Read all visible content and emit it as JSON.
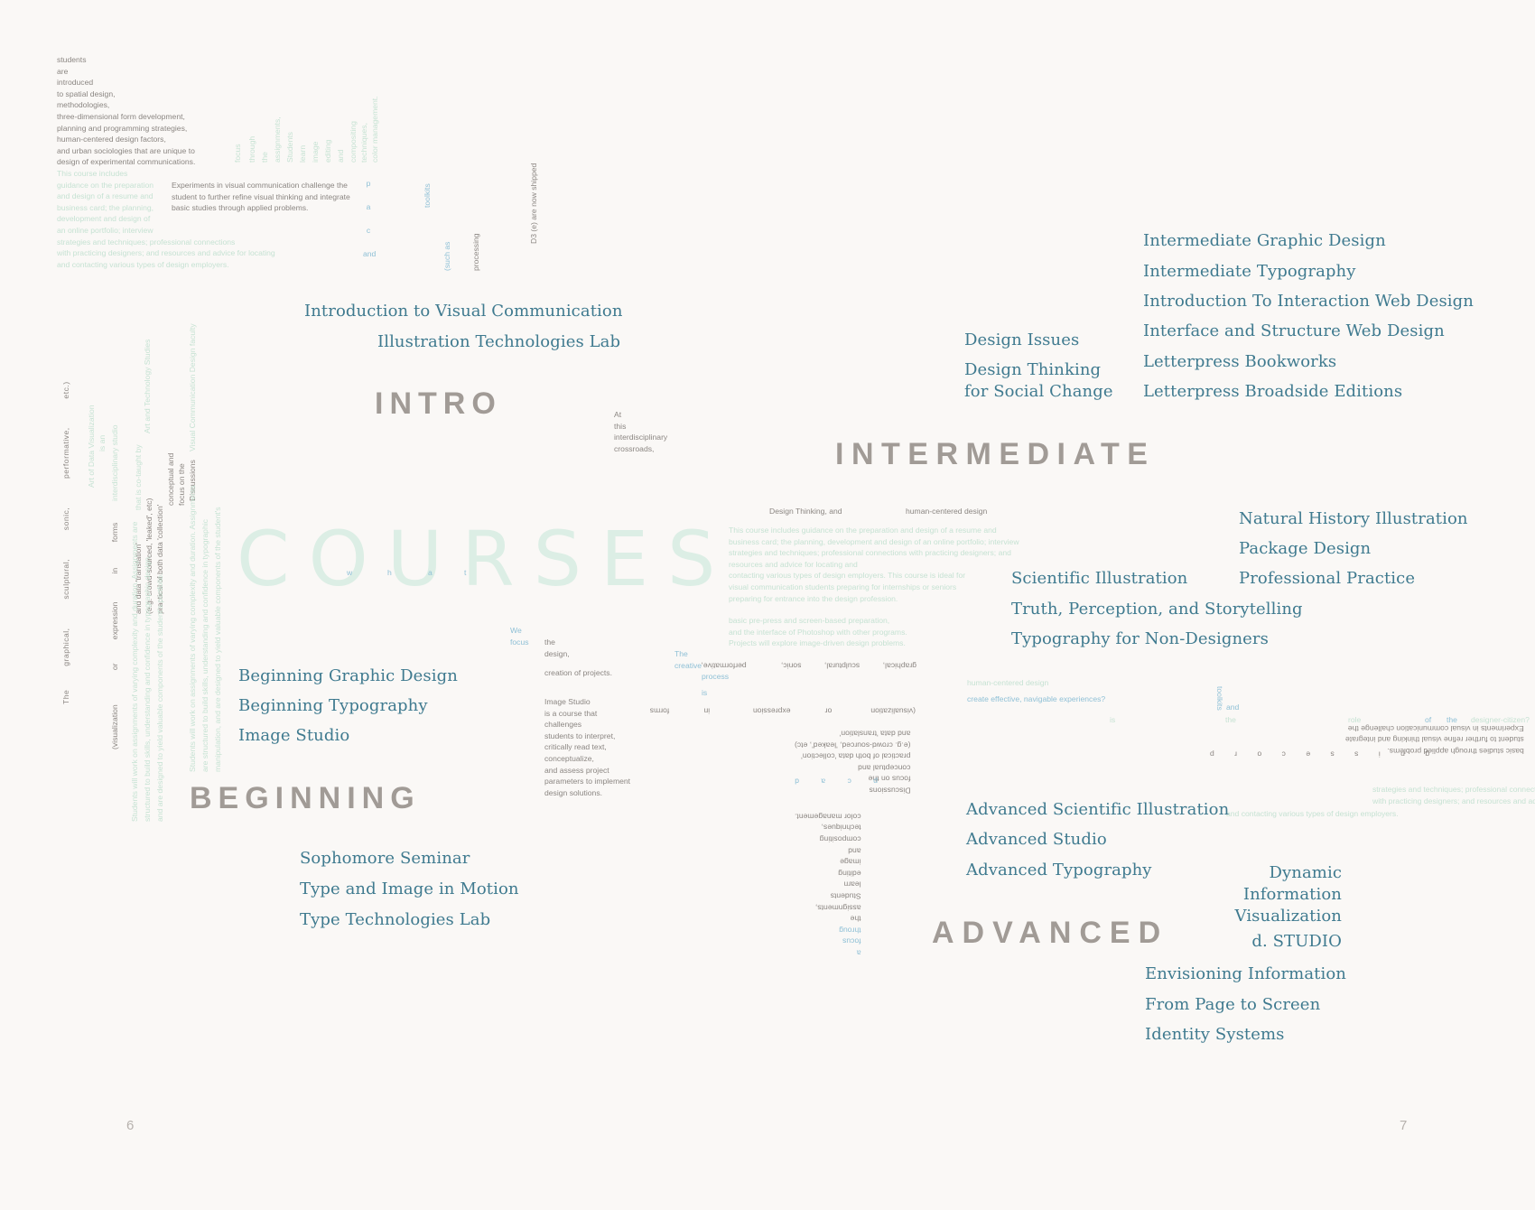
{
  "hero": {
    "title": "COURSES",
    "inline_word": [
      "w",
      "h",
      "a",
      "t"
    ]
  },
  "categories": {
    "intro": "INTRO",
    "intermediate": "INTERMEDIATE",
    "beginning": "BEGINNING",
    "advanced": "ADVANCED"
  },
  "intro_courses": [
    "Introduction to Visual Communication",
    "Illustration Technologies Lab"
  ],
  "design_issues": [
    "Design Issues",
    "Design Thinking",
    "for Social Change"
  ],
  "intermediate_courses": [
    "Intermediate Graphic Design",
    "Intermediate Typography",
    "Introduction To Interaction Web Design",
    "Interface and Structure Web Design",
    "Letterpress Bookworks",
    "Letterpress Broadside Editions"
  ],
  "natural_courses": [
    "Natural History Illustration",
    "Package Design",
    "Professional Practice"
  ],
  "scientific_courses": [
    "Scientific Illustration",
    "Truth, Perception, and Storytelling",
    "Typography for Non-Designers"
  ],
  "beginning_courses": [
    "Beginning Graphic Design",
    "Beginning Typography",
    "Image Studio"
  ],
  "sophomore_courses": [
    "Sophomore Seminar",
    "Type and Image in Motion",
    "Type Technologies Lab"
  ],
  "advanced_courses": [
    "Advanced Scientific Illustration",
    "Advanced Studio",
    "Advanced Typography"
  ],
  "dynamic_courses": [
    "Dynamic",
    "Information",
    "Visualization",
    "d. STUDIO"
  ],
  "envisioning_courses": [
    "Envisioning Information",
    "From Page to Screen",
    "Identity Systems"
  ],
  "page_numbers": {
    "left": "6",
    "right": "7"
  },
  "text_blocks": {
    "spatial": [
      "students",
      "are",
      "introduced",
      "to spatial design,",
      "methodologies,",
      "three-dimensional form development,",
      "planning and programming strategies,",
      "human-centered design factors,",
      "and urban sociologies that are unique to",
      "design of experimental communications."
    ],
    "portfolio": [
      "This course includes",
      "guidance on the preparation",
      "and design of a resume and",
      "business card; the planning,",
      "development and design of",
      "an online portfolio; interview",
      "strategies and techniques; professional connections",
      "with practicing designers; and resources and advice for locating",
      "and contacting various types of design employers."
    ],
    "experiments": [
      "Experiments in visual communication challenge the",
      "student to further refine visual thinking and integrate",
      "basic studies through applied problems."
    ],
    "crossroads": [
      "At",
      "this",
      "interdisciplinary",
      "crossroads,"
    ],
    "design_thinking_a": "Design Thinking, and",
    "design_thinking_b": "human-centered design",
    "center_course": [
      "This course includes guidance on the preparation and design of a resume and",
      "business card; the planning, development and design of an online portfolio; interview",
      "strategies and techniques; professional connections with practicing designers; and",
      "resources and advice for locating and",
      "contacting various types of design employers. This course is ideal for",
      "visual communication students preparing for internships or seniors",
      "preparing for entrance into the design profession."
    ],
    "prepress": [
      "basic pre-press and screen-based preparation,",
      "and the interface of Photoshop with other programs.",
      "Projects will explore image-driven design problems."
    ],
    "focus": [
      "We",
      "focus"
    ],
    "design_word": [
      "the",
      "design,"
    ],
    "creation": "creation of projects.",
    "image_studio": [
      "Image Studio",
      "is a course that",
      "challenges",
      "students to interpret,",
      "critically read text,",
      "conceptualize,",
      "and assess project",
      "parameters to implement",
      "design solutions."
    ],
    "creative": [
      "The",
      "creative"
    ],
    "process": "process",
    "is_word": "is",
    "graphical_row": [
      "graphical,",
      "sculptural,",
      "sonic,",
      "performative,"
    ],
    "visualization_row": [
      "(visualization",
      "or",
      "expression",
      "in",
      "forms"
    ],
    "discussions": [
      "and data 'translation'",
      "(e.g. crowd-sourced, 'leaked', etc)",
      "practical of both data 'collection'",
      "conceptual and",
      "focus on the",
      "Discussions"
    ],
    "toolkits_flip": [
      "color management.",
      "techniques,",
      "compositing",
      "and",
      "image",
      "editing",
      "learn",
      "Students",
      "assignments,",
      "the",
      "throug",
      "focus",
      "a"
    ],
    "pacd": [
      "d",
      "a",
      "c",
      "p"
    ],
    "hcd": [
      "human-centered design",
      "create effective, navigable experiences?"
    ],
    "toolkits_word": [
      "toolkits",
      "and"
    ],
    "role_row": [
      "is",
      "the",
      "role",
      "of",
      "the",
      "designer-citizen?"
    ],
    "experiments_flip": [
      "Experiments in visual communication challenge the",
      "student to further refine visual thinking and integrate",
      "basic studies through applied problems."
    ],
    "gnissecorp": "g n i s s e c o r p",
    "strategies_r": [
      "strategies and techniques; professional connections",
      "with practicing designers; and resources and advice for locating"
    ],
    "contacting_r": "and contacting various types of design employers.",
    "vert_toolkit": [
      "focus",
      "through",
      "the",
      "assignments,",
      "Students",
      "learn",
      "image",
      "editing",
      "and",
      "compositing",
      "techniques,",
      "color management."
    ],
    "vert_pacd": [
      "and",
      "c",
      "a",
      "p"
    ],
    "vert_toolkits": "toolkits",
    "vert_suchas": "(such as",
    "vert_processing": "processing",
    "vert_ed3": "D3 (e) are now shipped",
    "vert_left": [
      "The",
      "graphical,",
      "sculptural,",
      "sonic,",
      "performative,",
      "etc.)"
    ],
    "vert_adv": [
      "Art of Data Visualization",
      "is an",
      "interdisciplinary studio",
      "(visualization",
      "or",
      "expression",
      "in",
      "forms"
    ],
    "vert_disc": [
      "Art and Technology Studies",
      "that is co-taught by",
      "and data 'translation'",
      "(e.g. crowd-sourced, 'leaked', etc)",
      "practical of both data 'collection'",
      "conceptual and",
      "focus on the",
      "Discussions",
      "Visual Communication Design faculty"
    ],
    "vert_long": [
      "Students will work on assignments of varying complexity and duration. Assignments are",
      "structured to build skills, understanding and confidence in typographic design,",
      "and are designed to yield valuable components of the student's portfolio.",
      "Students will work on assignments of varying complexity and duration. Assignments",
      "are structured to build skills, understanding and confidence in typographic",
      "manipulation, and are designed to yield valuable components of the student's"
    ]
  }
}
